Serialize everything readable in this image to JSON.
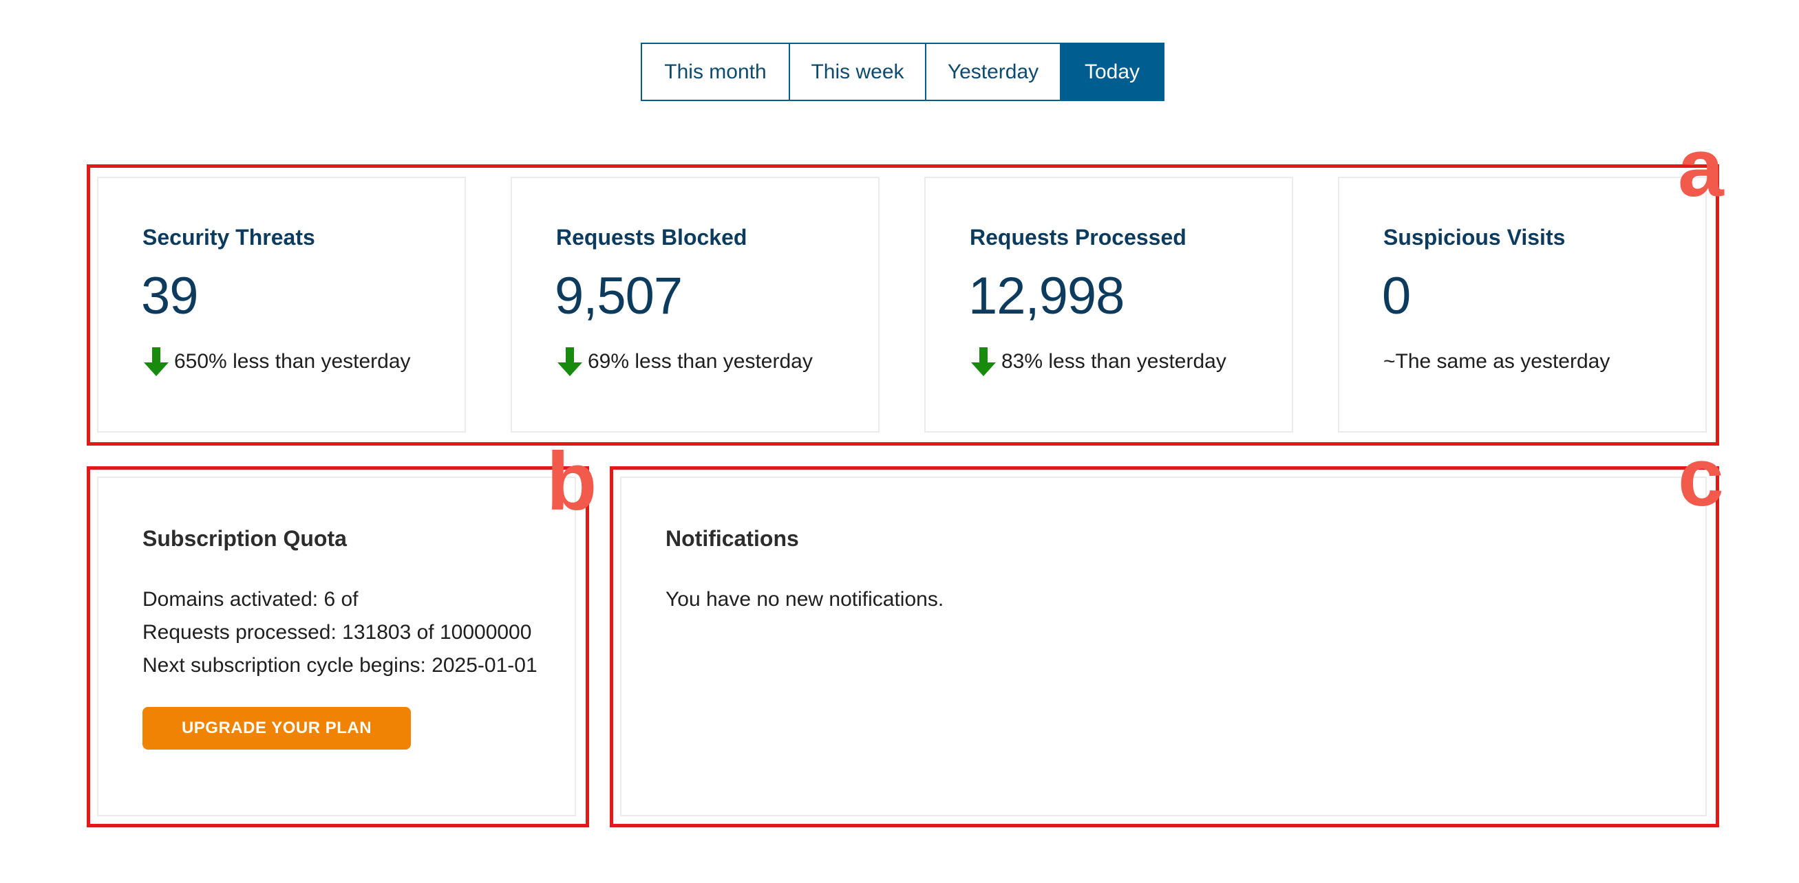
{
  "period_selector": {
    "tabs": [
      {
        "label": "This month",
        "active": false
      },
      {
        "label": "This week",
        "active": false
      },
      {
        "label": "Yesterday",
        "active": false
      },
      {
        "label": "Today",
        "active": true
      }
    ]
  },
  "stats": [
    {
      "title": "Security Threats",
      "value": "39",
      "change": "650% less than yesterday",
      "trend_icon": "arrow-down-icon"
    },
    {
      "title": "Requests Blocked",
      "value": "9,507",
      "change": "69% less than yesterday",
      "trend_icon": "arrow-down-icon"
    },
    {
      "title": "Requests Processed",
      "value": "12,998",
      "change": "83% less than yesterday",
      "trend_icon": "arrow-down-icon"
    },
    {
      "title": "Suspicious Visits",
      "value": "0",
      "change": "~The same as yesterday",
      "trend_icon": ""
    }
  ],
  "subscription": {
    "title": "Subscription Quota",
    "domains_line": "Domains activated: 6 of",
    "requests_line": "Requests processed: 131803 of 10000000",
    "cycle_line": "Next subscription cycle begins: 2025-01-01",
    "upgrade_label": "UPGRADE YOUR PLAN"
  },
  "notifications": {
    "title": "Notifications",
    "message": "You have no new notifications."
  },
  "annotations": {
    "a": "a",
    "b": "b",
    "c": "c"
  },
  "colors": {
    "primary": "#005d8f",
    "heading": "#0c3b5e",
    "trend_down": "#188a0e",
    "accent_button": "#f08204",
    "annotation": "#e01919",
    "annotation_letter": "#f25b4b"
  }
}
